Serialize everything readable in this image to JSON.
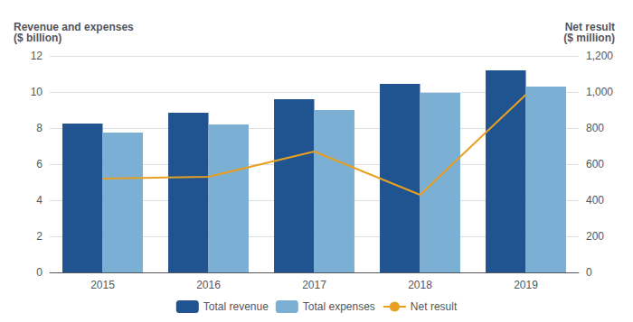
{
  "chart_data": {
    "type": "bar",
    "categories": [
      "2015",
      "2016",
      "2017",
      "2018",
      "2019"
    ],
    "series": [
      {
        "name": "Total revenue",
        "color": "#1F5491",
        "values": [
          8.25,
          8.85,
          9.6,
          10.45,
          11.2
        ]
      },
      {
        "name": "Total expenses",
        "color": "#7BAFD4",
        "values": [
          7.75,
          8.2,
          9.0,
          9.95,
          10.3
        ]
      },
      {
        "name": "Net result",
        "color": "#E8A020",
        "values": [
          520,
          530,
          670,
          430,
          985
        ],
        "type": "line",
        "axis": "y2"
      }
    ],
    "ylabel": "Revenue and expenses\n($ billion)",
    "y2label": "Net result\n($ million)",
    "ylim": [
      0,
      12
    ],
    "yticks": [
      0,
      2,
      4,
      6,
      8,
      10,
      12
    ],
    "y2lim": [
      0,
      1200
    ],
    "y2ticks": [
      0,
      200,
      400,
      600,
      800,
      1000,
      1200
    ],
    "grid": true,
    "legend": "bottom"
  }
}
